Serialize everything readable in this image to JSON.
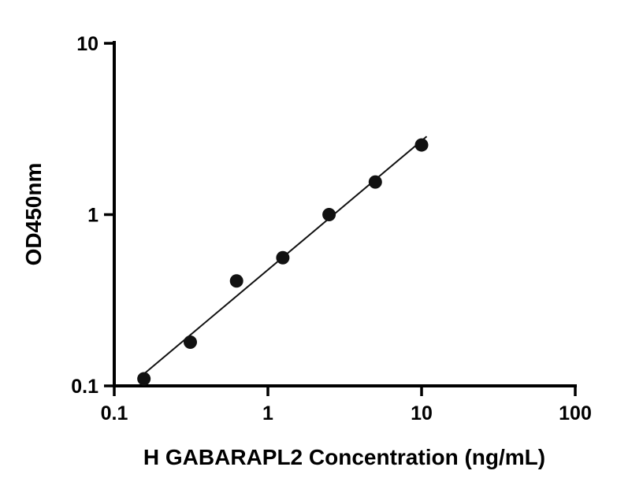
{
  "chart_data": {
    "type": "scatter",
    "title": "",
    "xlabel": "H GABARAPL2 Concentration (ng/mL)",
    "ylabel": "OD450nm",
    "xscale": "log",
    "yscale": "log",
    "xlim": [
      0.1,
      100
    ],
    "ylim": [
      0.1,
      10
    ],
    "x_ticks": [
      0.1,
      1,
      10,
      100
    ],
    "x_tick_labels": [
      "0.1",
      "1",
      "10",
      "100"
    ],
    "y_ticks": [
      0.1,
      1,
      10
    ],
    "y_tick_labels": [
      "0.1",
      "1",
      "10"
    ],
    "grid": "off",
    "legend": "none",
    "x": [
      0.156,
      0.3125,
      0.625,
      1.25,
      2.5,
      5,
      10
    ],
    "y": [
      0.11,
      0.18,
      0.41,
      0.56,
      1.0,
      1.55,
      2.55
    ],
    "trendline": {
      "type": "power-fit-loglog",
      "x_range": [
        0.145,
        10.8
      ]
    },
    "marker_color": "#111111",
    "line_color": "#111111",
    "axis_color": "#000000"
  }
}
